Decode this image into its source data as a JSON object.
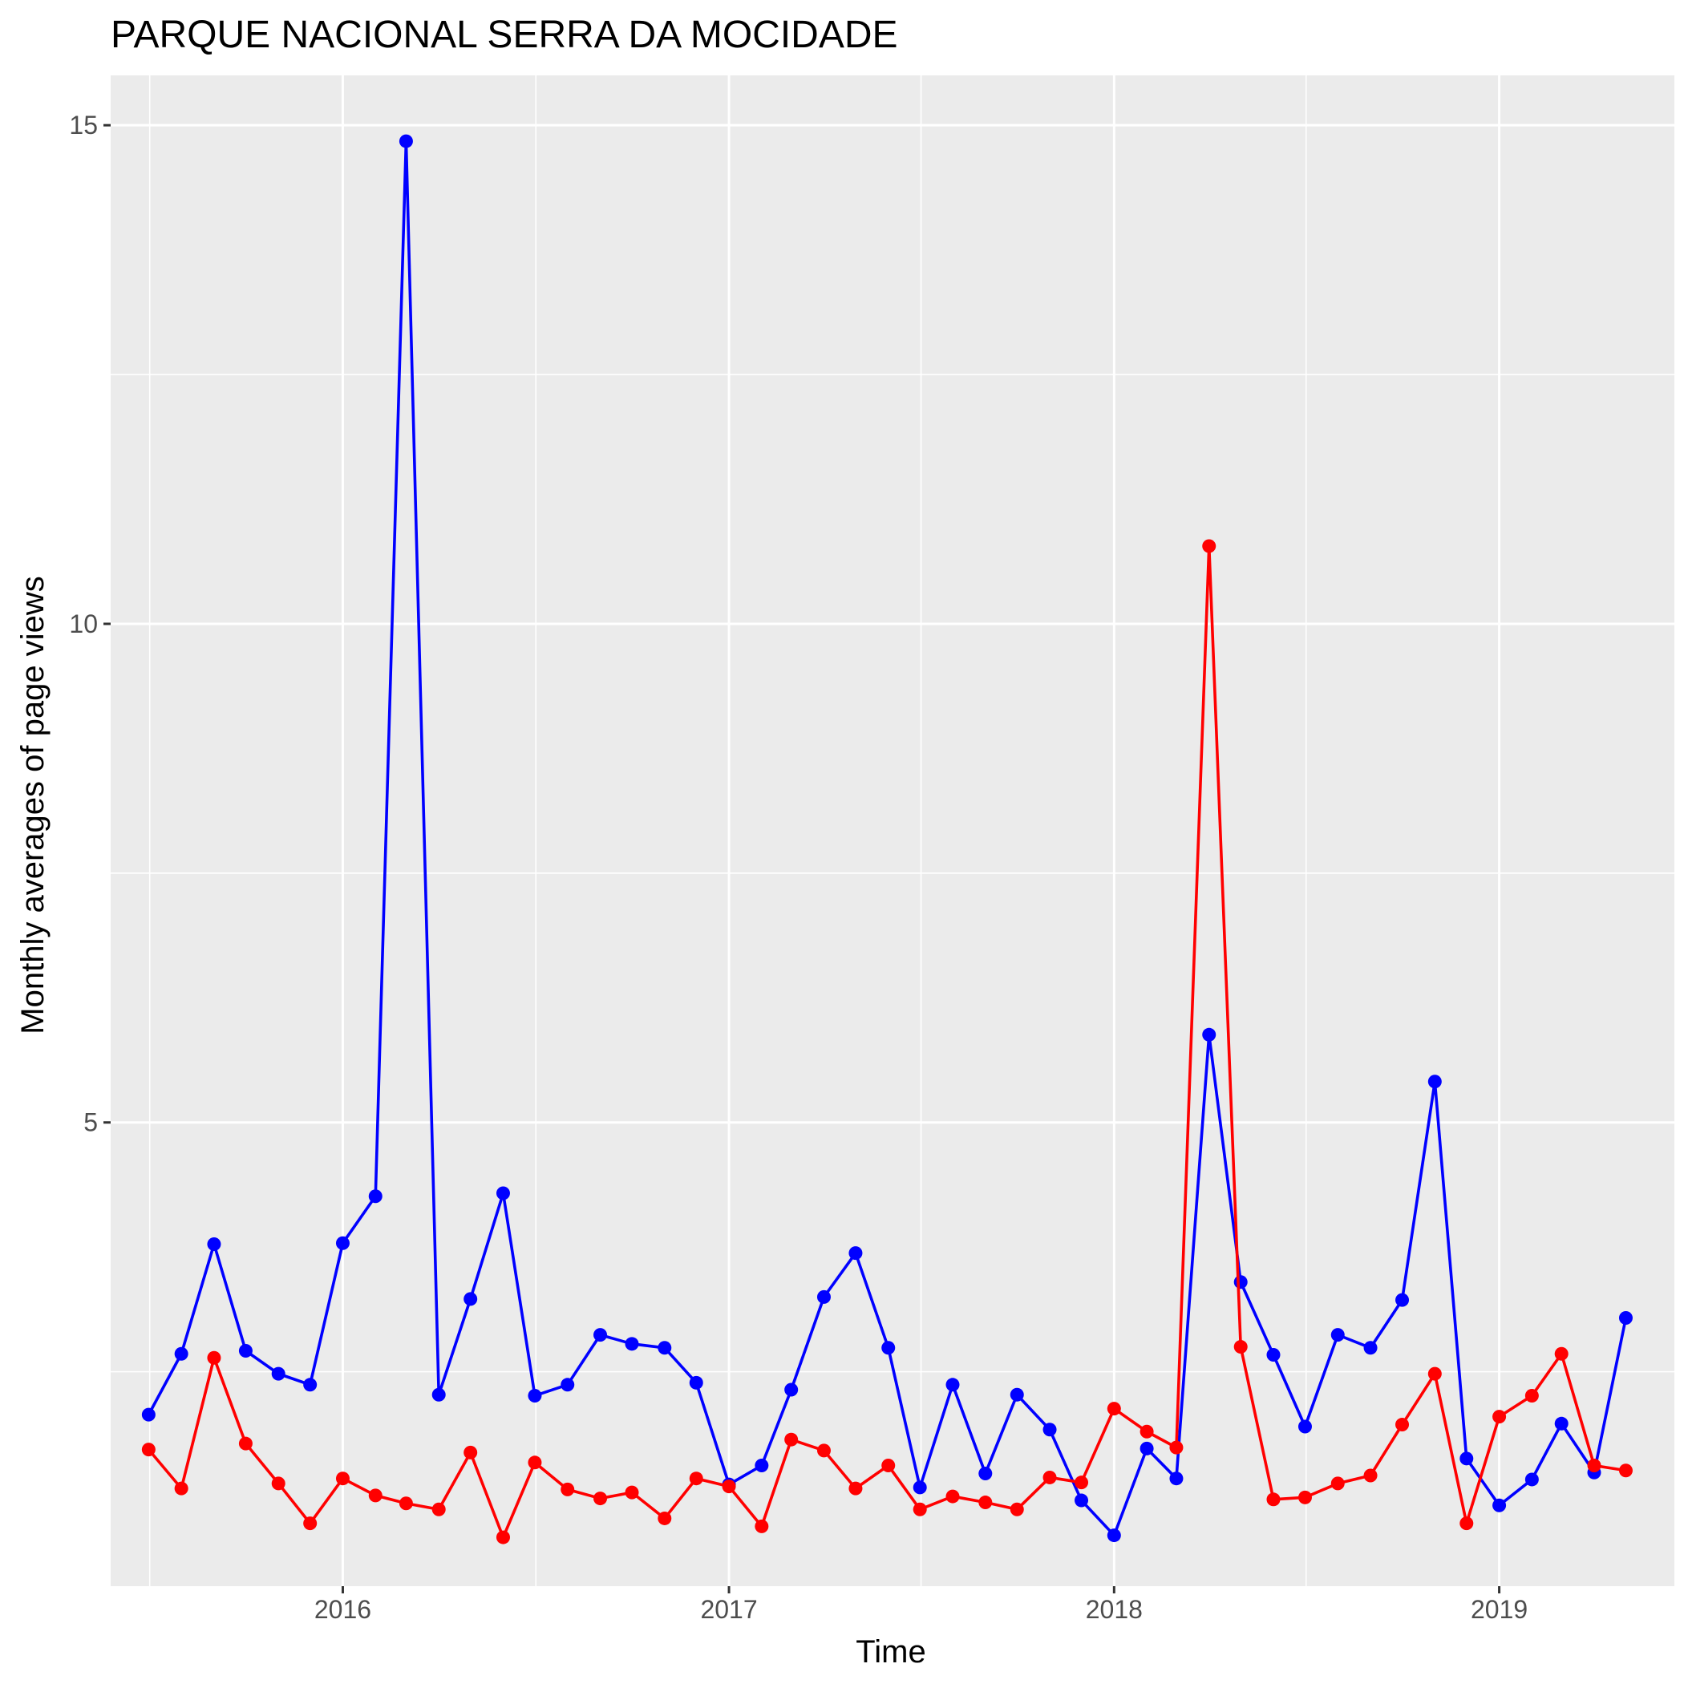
{
  "chart_data": {
    "type": "line",
    "title": "PARQUE NACIONAL SERRA DA MOCIDADE",
    "xlabel": "Time",
    "ylabel": "Monthly averages of page views",
    "x_ticks": [
      "2016",
      "2017",
      "2018",
      "2019"
    ],
    "y_ticks": [
      "5",
      "10",
      "15"
    ],
    "ylim": [
      0.35,
      15.5
    ],
    "xlim": [
      "2015-05-26",
      "2019-06-16"
    ],
    "grid": true,
    "legend": "none",
    "x": [
      "2015-07-01",
      "2015-08-01",
      "2015-09-01",
      "2015-10-01",
      "2015-11-01",
      "2015-12-01",
      "2016-01-01",
      "2016-02-01",
      "2016-03-01",
      "2016-04-01",
      "2016-05-01",
      "2016-06-01",
      "2016-07-01",
      "2016-08-01",
      "2016-09-01",
      "2016-10-01",
      "2016-11-01",
      "2016-12-01",
      "2017-01-01",
      "2017-02-01",
      "2017-03-01",
      "2017-04-01",
      "2017-05-01",
      "2017-06-01",
      "2017-07-01",
      "2017-08-01",
      "2017-09-01",
      "2017-10-01",
      "2017-11-01",
      "2017-12-01",
      "2018-01-01",
      "2018-02-01",
      "2018-03-01",
      "2018-04-01",
      "2018-05-01",
      "2018-06-01",
      "2018-07-01",
      "2018-08-01",
      "2018-09-01",
      "2018-10-01",
      "2018-11-01",
      "2018-12-01",
      "2019-01-01",
      "2019-02-01",
      "2019-03-01",
      "2019-04-01",
      "2019-05-01"
    ],
    "series": [
      {
        "color": "#0000ff",
        "values": [
          2.07,
          2.68,
          3.78,
          2.71,
          2.48,
          2.37,
          3.79,
          4.26,
          14.84,
          2.27,
          3.23,
          4.29,
          2.26,
          2.37,
          2.87,
          2.78,
          2.74,
          2.39,
          1.37,
          1.56,
          2.32,
          3.25,
          3.69,
          2.74,
          1.34,
          2.37,
          1.48,
          2.27,
          1.92,
          1.21,
          0.86,
          1.73,
          1.43,
          5.88,
          3.4,
          2.67,
          1.95,
          2.87,
          2.74,
          3.22,
          5.41,
          1.63,
          1.16,
          1.42,
          1.98,
          1.49,
          3.04
        ]
      },
      {
        "color": "#ff0000",
        "values": [
          1.72,
          1.33,
          2.64,
          1.78,
          1.38,
          0.98,
          1.43,
          1.26,
          1.18,
          1.12,
          1.69,
          0.84,
          1.59,
          1.32,
          1.23,
          1.29,
          1.03,
          1.43,
          1.35,
          0.95,
          1.82,
          1.71,
          1.33,
          1.56,
          1.12,
          1.25,
          1.19,
          1.12,
          1.44,
          1.39,
          2.13,
          1.9,
          1.74,
          10.78,
          2.75,
          1.22,
          1.24,
          1.38,
          1.46,
          1.97,
          2.48,
          0.98,
          2.05,
          2.26,
          2.68,
          1.56,
          1.51
        ]
      }
    ]
  }
}
